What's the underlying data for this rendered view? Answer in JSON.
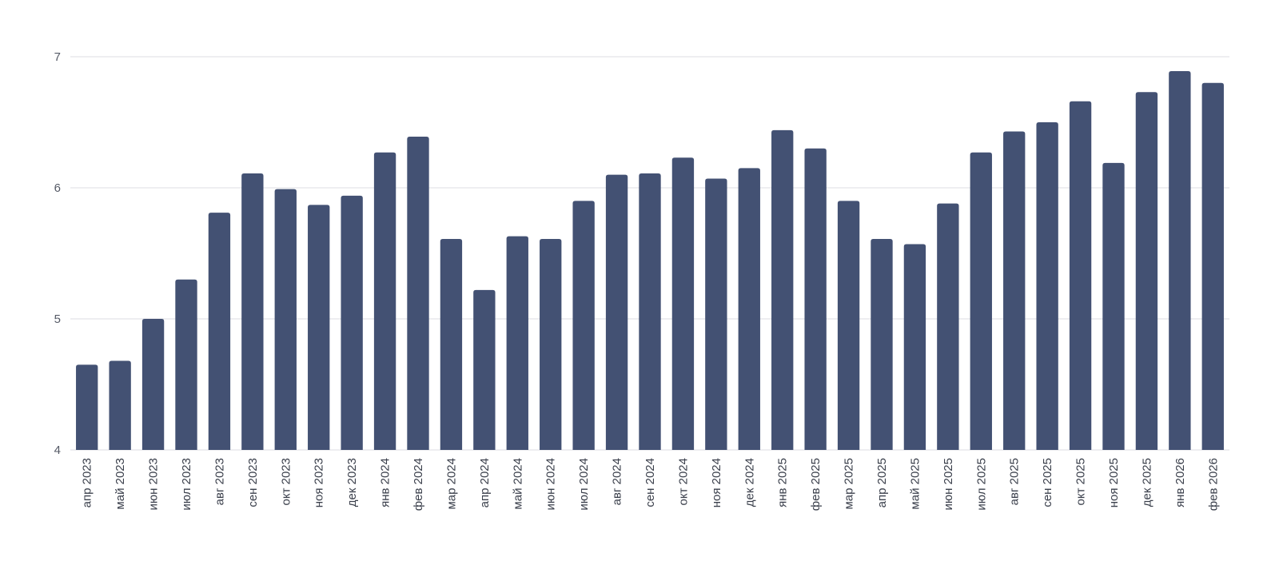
{
  "chart_data": {
    "type": "bar",
    "title": "",
    "xlabel": "",
    "ylabel": "",
    "ylim": [
      4,
      7
    ],
    "yticks": [
      "4",
      "5",
      "6",
      "7"
    ],
    "grid": true,
    "bar_color": "#435173",
    "categories": [
      "апр 2023",
      "май 2023",
      "июн 2023",
      "июл 2023",
      "авг 2023",
      "сен 2023",
      "окт 2023",
      "ноя 2023",
      "дек 2023",
      "янв 2024",
      "фев 2024",
      "мар 2024",
      "апр 2024",
      "май 2024",
      "июн 2024",
      "июл 2024",
      "авг 2024",
      "сен 2024",
      "окт 2024",
      "ноя 2024",
      "дек 2024",
      "янв 2025",
      "фев 2025",
      "мар 2025",
      "апр 2025",
      "май 2025",
      "июн 2025",
      "июл 2025",
      "авг 2025",
      "сен 2025",
      "окт 2025",
      "ноя 2025",
      "дек 2025",
      "янв 2026",
      "фев 2026"
    ],
    "values": [
      4.65,
      4.68,
      5.0,
      5.3,
      5.81,
      6.11,
      5.99,
      5.87,
      5.94,
      6.27,
      6.39,
      5.61,
      5.22,
      5.63,
      5.61,
      5.9,
      6.1,
      6.11,
      6.23,
      6.07,
      6.15,
      6.44,
      6.3,
      5.9,
      5.61,
      5.57,
      5.88,
      6.27,
      6.43,
      6.5,
      6.66,
      6.19,
      6.73,
      6.89,
      6.8
    ]
  }
}
